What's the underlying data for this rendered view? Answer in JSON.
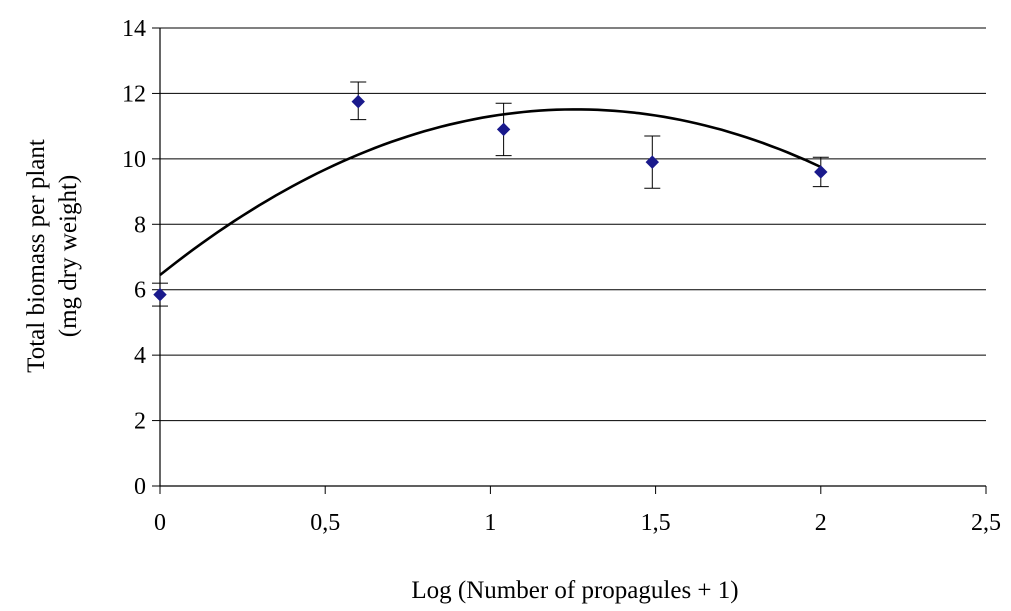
{
  "chart_data": {
    "type": "scatter",
    "title": "",
    "xlabel": "Log (Number of propagules + 1)",
    "ylabel_lines": [
      "Total biomass per plant",
      "(mg dry weight)"
    ],
    "xlim": [
      0,
      2.5
    ],
    "ylim": [
      0,
      14
    ],
    "x_ticks": [
      0,
      0.5,
      1,
      1.5,
      2,
      2.5
    ],
    "x_tick_labels": [
      "0",
      "0,5",
      "1",
      "1,5",
      "2",
      "2,5"
    ],
    "y_ticks": [
      0,
      2,
      4,
      6,
      8,
      10,
      12,
      14
    ],
    "y_tick_labels": [
      "0",
      "2",
      "4",
      "6",
      "8",
      "10",
      "12",
      "14"
    ],
    "grid": "horizontal",
    "series": [
      {
        "marker": "diamond",
        "color": "#1a1a8c",
        "points": [
          {
            "x": 0,
            "y": 5.85,
            "err_low": 5.5,
            "err_high": 6.2
          },
          {
            "x": 0.6,
            "y": 11.75,
            "err_low": 11.2,
            "err_high": 12.35
          },
          {
            "x": 1.04,
            "y": 10.9,
            "err_low": 10.1,
            "err_high": 11.7
          },
          {
            "x": 1.49,
            "y": 9.9,
            "err_low": 9.1,
            "err_high": 10.7
          },
          {
            "x": 2.0,
            "y": 9.6,
            "err_low": 9.15,
            "err_high": 10.05
          }
        ]
      }
    ],
    "trendline": {
      "type": "polynomial",
      "degree": 2,
      "color": "#000000",
      "x_range": [
        0,
        2.0
      ],
      "coefficients": [
        6.45,
        8.05,
        -3.2
      ]
    }
  }
}
